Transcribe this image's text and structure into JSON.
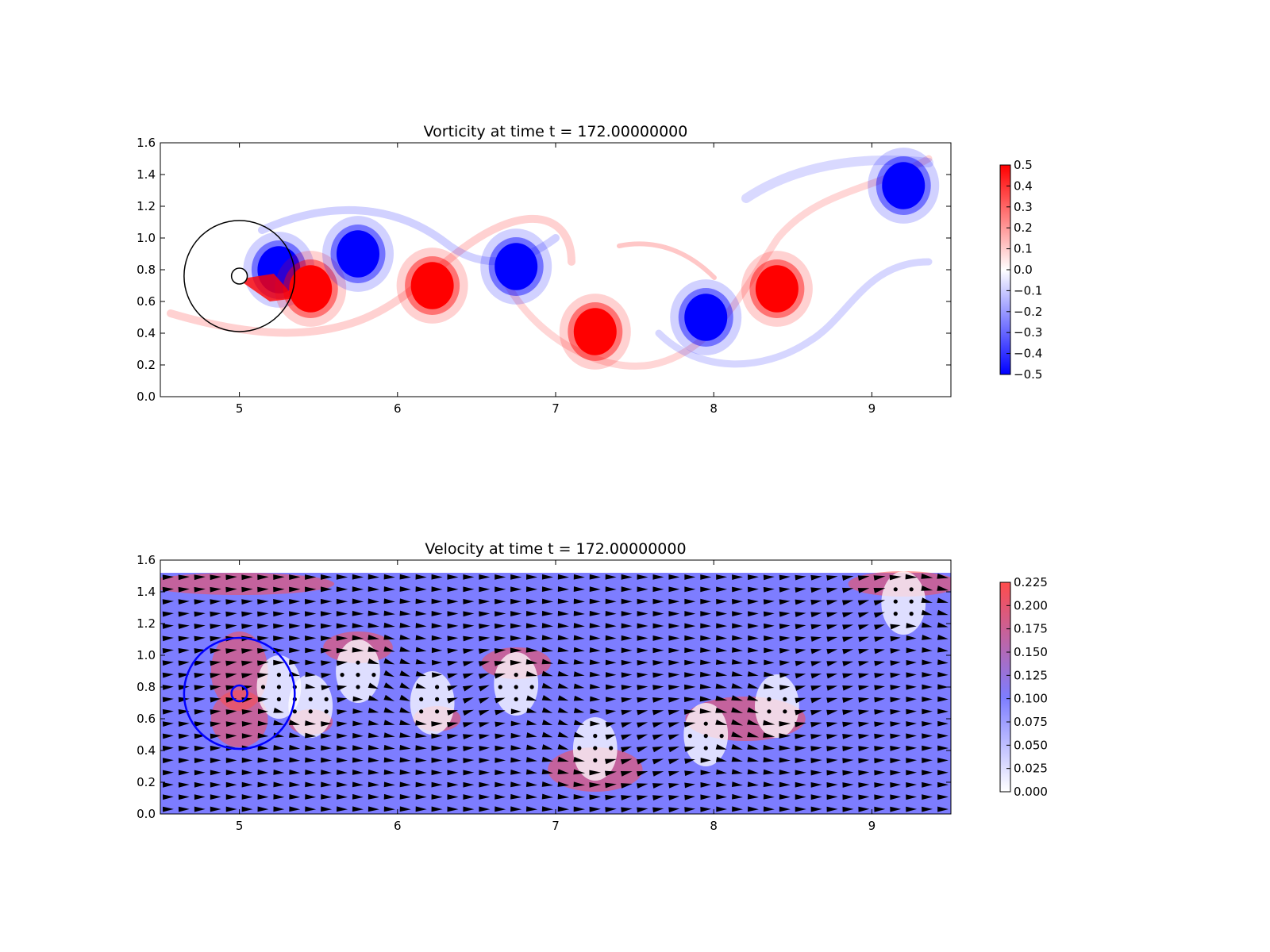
{
  "chart_data": [
    {
      "type": "heatmap",
      "title": "Vorticity at time t =   172.00000000",
      "xlabel": "",
      "ylabel": "",
      "xlim": [
        4.5,
        9.5
      ],
      "ylim": [
        0.0,
        1.6
      ],
      "x_ticks": [
        "5",
        "6",
        "7",
        "8",
        "9"
      ],
      "y_ticks": [
        "0.0",
        "0.2",
        "0.4",
        "0.6",
        "0.8",
        "1.0",
        "1.2",
        "1.4",
        "1.6"
      ],
      "colormap": "bwr",
      "colors": {
        "negative": "#0000ff",
        "zero": "#ffffff",
        "positive": "#ff0000"
      },
      "colorbar": {
        "range": [
          -0.5,
          0.5
        ],
        "ticks": [
          "0.5",
          "0.4",
          "0.3",
          "0.2",
          "0.1",
          "0.0",
          "−0.1",
          "−0.2",
          "−0.3",
          "−0.4",
          "−0.5"
        ]
      },
      "vortices": [
        {
          "x": 5.25,
          "y": 0.8,
          "w": -0.5
        },
        {
          "x": 5.45,
          "y": 0.68,
          "w": 0.5
        },
        {
          "x": 5.75,
          "y": 0.9,
          "w": -0.5
        },
        {
          "x": 6.22,
          "y": 0.7,
          "w": 0.5
        },
        {
          "x": 6.75,
          "y": 0.82,
          "w": -0.5
        },
        {
          "x": 7.25,
          "y": 0.41,
          "w": 0.5
        },
        {
          "x": 7.95,
          "y": 0.5,
          "w": -0.5
        },
        {
          "x": 8.4,
          "y": 0.68,
          "w": 0.5
        },
        {
          "x": 9.2,
          "y": 1.33,
          "w": -0.5
        }
      ],
      "circle": {
        "cx": 5.0,
        "cy": 0.76,
        "r": 0.35
      },
      "cylinder": {
        "cx": 5.0,
        "cy": 0.76,
        "r": 0.05
      }
    },
    {
      "type": "heatmap",
      "title": "Velocity at time t =   172.00000000",
      "xlabel": "",
      "ylabel": "",
      "xlim": [
        4.5,
        9.5
      ],
      "ylim": [
        0.0,
        1.6
      ],
      "x_ticks": [
        "5",
        "6",
        "7",
        "8",
        "9"
      ],
      "y_ticks": [
        "0.0",
        "0.2",
        "0.4",
        "0.6",
        "0.8",
        "1.0",
        "1.2",
        "1.4",
        "1.6"
      ],
      "field_top": 1.52,
      "colormap": "white-blue-red",
      "colors": {
        "low": "#ffffff",
        "mid": "#7d7dff",
        "high": "#ff4c4c"
      },
      "colorbar": {
        "range": [
          0.0,
          0.225
        ],
        "ticks": [
          "0.225",
          "0.200",
          "0.175",
          "0.150",
          "0.125",
          "0.100",
          "0.075",
          "0.050",
          "0.025",
          "0.000"
        ]
      },
      "background_speed": 0.1,
      "quiver": true,
      "circle": {
        "cx": 5.0,
        "cy": 0.76,
        "r": 0.35,
        "color": "#0000ff"
      },
      "cylinder": {
        "cx": 5.0,
        "cy": 0.76,
        "r": 0.05
      }
    }
  ]
}
